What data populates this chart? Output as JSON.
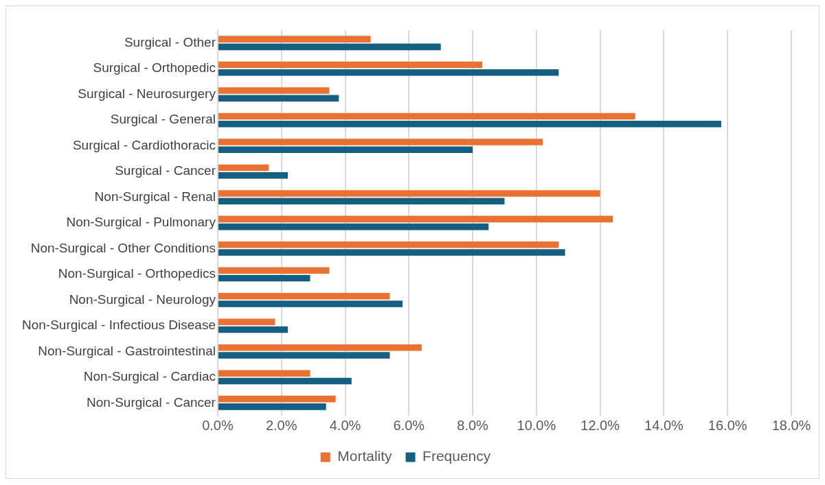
{
  "chart_data": {
    "type": "bar",
    "orientation": "horizontal",
    "categories": [
      "Surgical - Other",
      "Surgical - Orthopedic",
      "Surgical - Neurosurgery",
      "Surgical - General",
      "Surgical - Cardiothoracic",
      "Surgical - Cancer",
      "Non-Surgical - Renal",
      "Non-Surgical - Pulmonary",
      "Non-Surgical - Other Conditions",
      "Non-Surgical - Orthopedics",
      "Non-Surgical - Neurology",
      "Non-Surgical - Infectious Disease",
      "Non-Surgical - Gastrointestinal",
      "Non-Surgical - Cardiac",
      "Non-Surgical - Cancer"
    ],
    "series": [
      {
        "name": "Mortality",
        "color": "#e97132",
        "values": [
          4.8,
          8.3,
          3.5,
          13.1,
          10.2,
          1.6,
          12.0,
          12.4,
          10.7,
          3.5,
          5.4,
          1.8,
          6.4,
          2.9,
          3.7
        ]
      },
      {
        "name": "Frequency",
        "color": "#156082",
        "values": [
          7.0,
          10.7,
          3.8,
          15.8,
          8.0,
          2.2,
          9.0,
          8.5,
          10.9,
          2.9,
          5.8,
          2.2,
          5.4,
          4.2,
          3.4
        ]
      }
    ],
    "xlim": [
      0,
      18
    ],
    "xticks": [
      {
        "value": 0,
        "label": "0.0%"
      },
      {
        "value": 2,
        "label": "2.0%"
      },
      {
        "value": 4,
        "label": "4.0%"
      },
      {
        "value": 6,
        "label": "6.0%"
      },
      {
        "value": 8,
        "label": "8.0%"
      },
      {
        "value": 10,
        "label": "10.0%"
      },
      {
        "value": 12,
        "label": "12.0%"
      },
      {
        "value": 14,
        "label": "14.0%"
      },
      {
        "value": 16,
        "label": "16.0%"
      },
      {
        "value": 18,
        "label": "18.0%"
      }
    ],
    "grid": "x",
    "legend": "bottom"
  }
}
